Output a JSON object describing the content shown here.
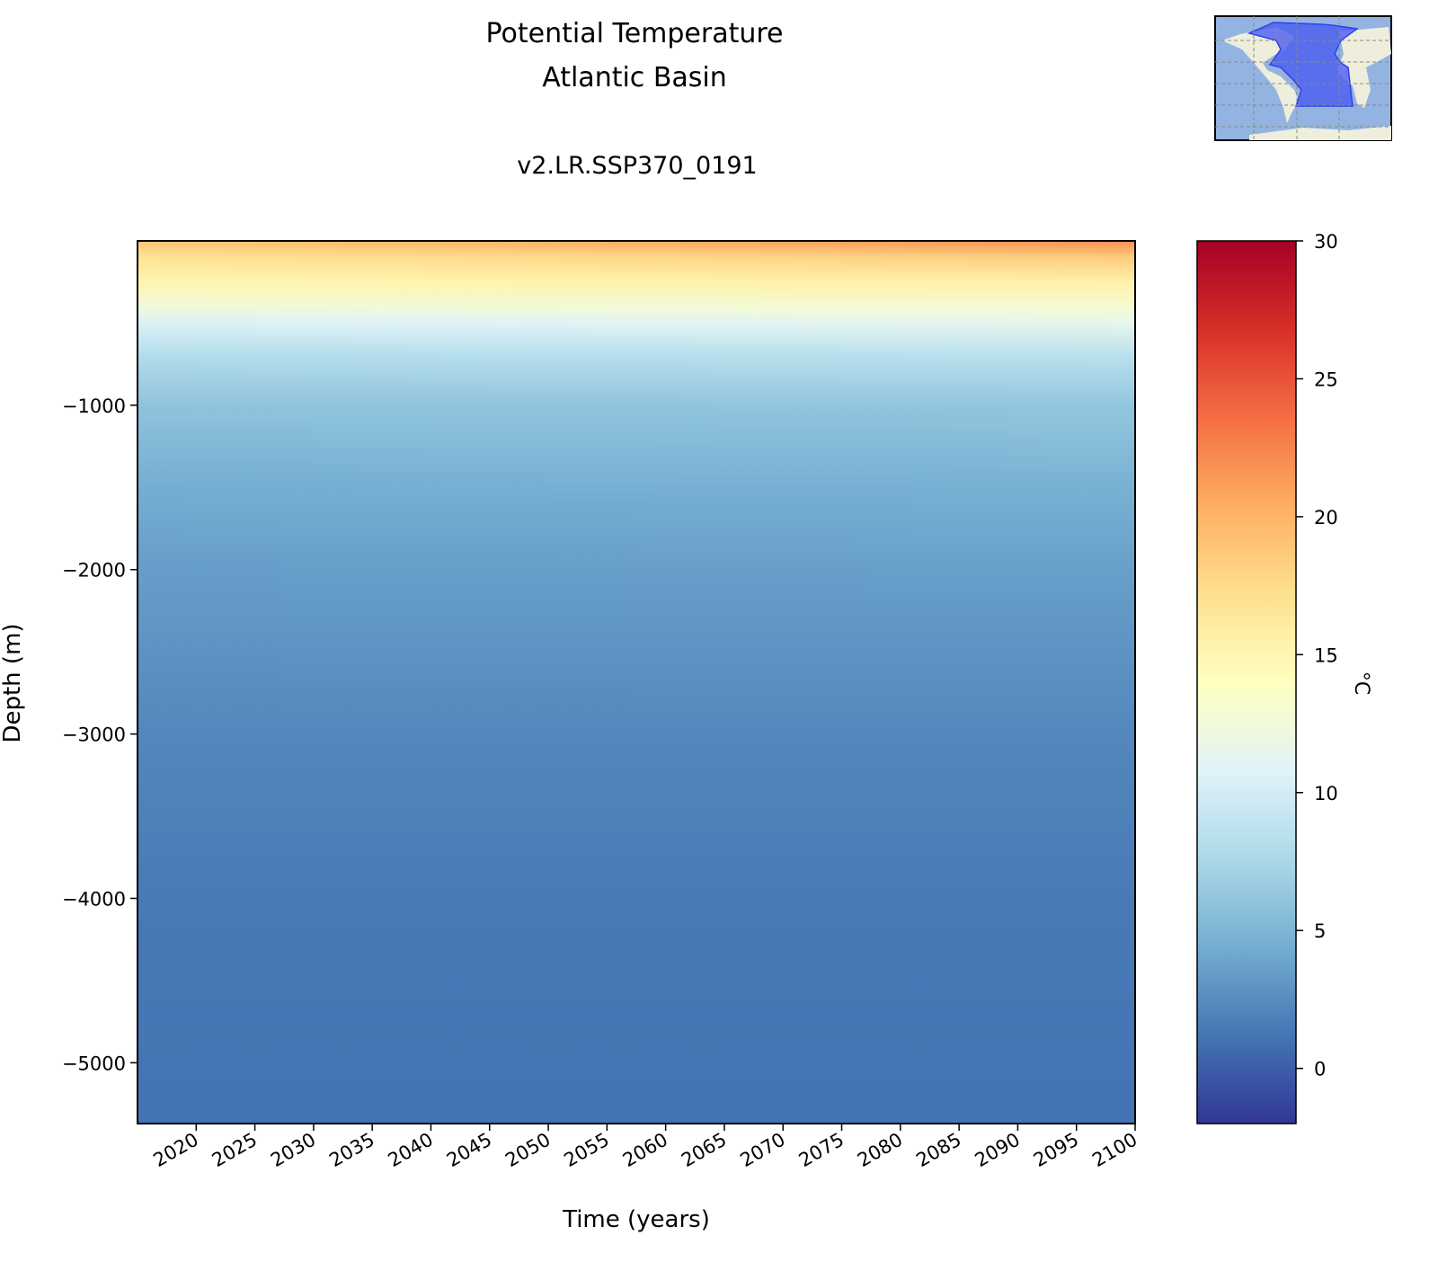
{
  "chart_data": {
    "type": "heatmap",
    "title": "Potential Temperature\nAtlantic Basin",
    "title_lines": [
      "Potential Temperature",
      "Atlantic Basin"
    ],
    "subtitle": "v2.LR.SSP370_0191",
    "xlabel": "Time (years)",
    "ylabel": "Depth (m)",
    "xlim": [
      2015,
      2100
    ],
    "ylim": [
      -5370,
      0
    ],
    "xticks": [
      2020,
      2025,
      2030,
      2035,
      2040,
      2045,
      2050,
      2055,
      2060,
      2065,
      2070,
      2075,
      2080,
      2085,
      2090,
      2095,
      2100
    ],
    "yticks": [
      -1000,
      -2000,
      -3000,
      -4000,
      -5000
    ],
    "colorbar": {
      "label": "°C",
      "range": [
        -2,
        30
      ],
      "ticks": [
        0,
        5,
        10,
        15,
        20,
        25,
        30
      ],
      "colormap": "RdYlBu_r"
    },
    "profile_depths": [
      0,
      100,
      250,
      400,
      500,
      700,
      1000,
      1500,
      2000,
      3000,
      4000,
      5000,
      5370
    ],
    "profiles": [
      {
        "year": 2015,
        "temperature": [
          19,
          17,
          15,
          12.5,
          10.5,
          8,
          6,
          4.5,
          3.5,
          2.2,
          1.5,
          1.2,
          1.1
        ]
      },
      {
        "year": 2100,
        "temperature": [
          22,
          18.5,
          15.5,
          13,
          11.5,
          8.5,
          6.2,
          4.7,
          3.6,
          2.2,
          1.5,
          1.2,
          1.1
        ]
      }
    ],
    "grid": false
  },
  "inset_map": {
    "region": "Atlantic Basin",
    "highlight_color": "#4a5cf0",
    "ocean_color": "#93b4e0",
    "land_color": "#efeedd"
  }
}
